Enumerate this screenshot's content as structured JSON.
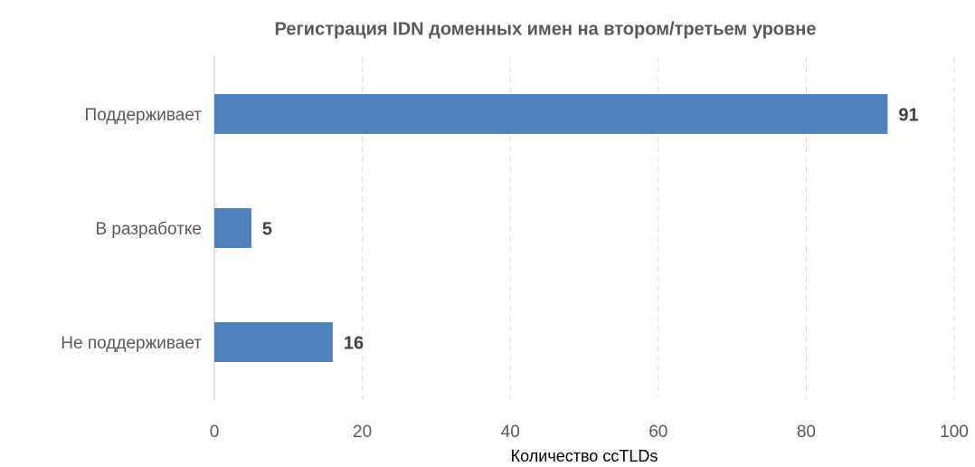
{
  "chart_data": {
    "type": "bar",
    "orientation": "horizontal",
    "title": "Регистрация IDN доменных имен на втором/третьем уровне",
    "x_label": "Количество ccTLDs",
    "categories": [
      "Поддерживает",
      "В разработке",
      "Не поддерживает"
    ],
    "values": [
      91,
      5,
      16
    ],
    "color": "#4f81bd",
    "xlim": [
      0,
      100
    ],
    "xticks": [
      0,
      20,
      40,
      60,
      80,
      100
    ],
    "grid": true
  }
}
